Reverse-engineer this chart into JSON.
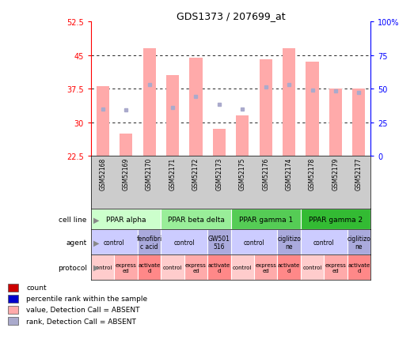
{
  "title": "GDS1373 / 207699_at",
  "samples": [
    "GSM52168",
    "GSM52169",
    "GSM52170",
    "GSM52171",
    "GSM52172",
    "GSM52173",
    "GSM52175",
    "GSM52176",
    "GSM52174",
    "GSM52178",
    "GSM52179",
    "GSM52177"
  ],
  "bar_values": [
    38.0,
    27.5,
    46.5,
    40.5,
    44.5,
    28.5,
    31.5,
    44.0,
    46.5,
    43.5,
    37.5,
    37.5
  ],
  "rank_values": [
    35,
    34,
    53,
    36,
    44,
    38,
    35,
    51,
    53,
    49,
    48,
    47
  ],
  "bar_color": "#ffaaaa",
  "rank_color": "#aaaacc",
  "ylim_left": [
    22.5,
    52.5
  ],
  "ylim_right": [
    0,
    100
  ],
  "yticks_left": [
    22.5,
    30.0,
    37.5,
    45.0,
    52.5
  ],
  "ytick_labels_left": [
    "22.5",
    "30",
    "37.5",
    "45",
    "52.5"
  ],
  "yticks_right": [
    0,
    25,
    50,
    75,
    100
  ],
  "ytick_labels_right": [
    "0",
    "25",
    "50",
    "75",
    "100%"
  ],
  "grid_lines": [
    30.0,
    37.5,
    45.0
  ],
  "bar_bottom": 22.5,
  "cell_line_groups": [
    {
      "label": "PPAR alpha",
      "start": 0,
      "end": 2,
      "color": "#ccffcc"
    },
    {
      "label": "PPAR beta delta",
      "start": 3,
      "end": 5,
      "color": "#99ee99"
    },
    {
      "label": "PPAR gamma 1",
      "start": 6,
      "end": 8,
      "color": "#55cc55"
    },
    {
      "label": "PPAR gamma 2",
      "start": 9,
      "end": 11,
      "color": "#33bb33"
    }
  ],
  "agent_groups": [
    {
      "label": "control",
      "start": 0,
      "end": 1,
      "color": "#ccccff"
    },
    {
      "label": "fenofibri\nc acid",
      "start": 2,
      "end": 2,
      "color": "#aaaadd"
    },
    {
      "label": "control",
      "start": 3,
      "end": 4,
      "color": "#ccccff"
    },
    {
      "label": "GW501\n516",
      "start": 5,
      "end": 5,
      "color": "#aaaadd"
    },
    {
      "label": "control",
      "start": 6,
      "end": 7,
      "color": "#ccccff"
    },
    {
      "label": "ciglitizo\nne",
      "start": 8,
      "end": 8,
      "color": "#aaaadd"
    },
    {
      "label": "control",
      "start": 9,
      "end": 10,
      "color": "#ccccff"
    },
    {
      "label": "ciglitizo\nne",
      "start": 11,
      "end": 11,
      "color": "#aaaadd"
    }
  ],
  "protocol_groups": [
    {
      "label": "control",
      "start": 0,
      "end": 0,
      "color": "#ffcccc"
    },
    {
      "label": "express\ned",
      "start": 1,
      "end": 1,
      "color": "#ffaaaa"
    },
    {
      "label": "activate\nd",
      "start": 2,
      "end": 2,
      "color": "#ff8888"
    },
    {
      "label": "control",
      "start": 3,
      "end": 3,
      "color": "#ffcccc"
    },
    {
      "label": "express\ned",
      "start": 4,
      "end": 4,
      "color": "#ffaaaa"
    },
    {
      "label": "activate\nd",
      "start": 5,
      "end": 5,
      "color": "#ff8888"
    },
    {
      "label": "control",
      "start": 6,
      "end": 6,
      "color": "#ffcccc"
    },
    {
      "label": "express\ned",
      "start": 7,
      "end": 7,
      "color": "#ffaaaa"
    },
    {
      "label": "activate\nd",
      "start": 8,
      "end": 8,
      "color": "#ff8888"
    },
    {
      "label": "control",
      "start": 9,
      "end": 9,
      "color": "#ffcccc"
    },
    {
      "label": "express\ned",
      "start": 10,
      "end": 10,
      "color": "#ffaaaa"
    },
    {
      "label": "activate\nd",
      "start": 11,
      "end": 11,
      "color": "#ff8888"
    }
  ],
  "legend_items": [
    {
      "color": "#cc0000",
      "label": "count"
    },
    {
      "color": "#0000cc",
      "label": "percentile rank within the sample"
    },
    {
      "color": "#ffaaaa",
      "label": "value, Detection Call = ABSENT"
    },
    {
      "color": "#aaaacc",
      "label": "rank, Detection Call = ABSENT"
    }
  ],
  "row_labels": [
    "cell line",
    "agent",
    "protocol"
  ],
  "label_bg": "#cccccc"
}
